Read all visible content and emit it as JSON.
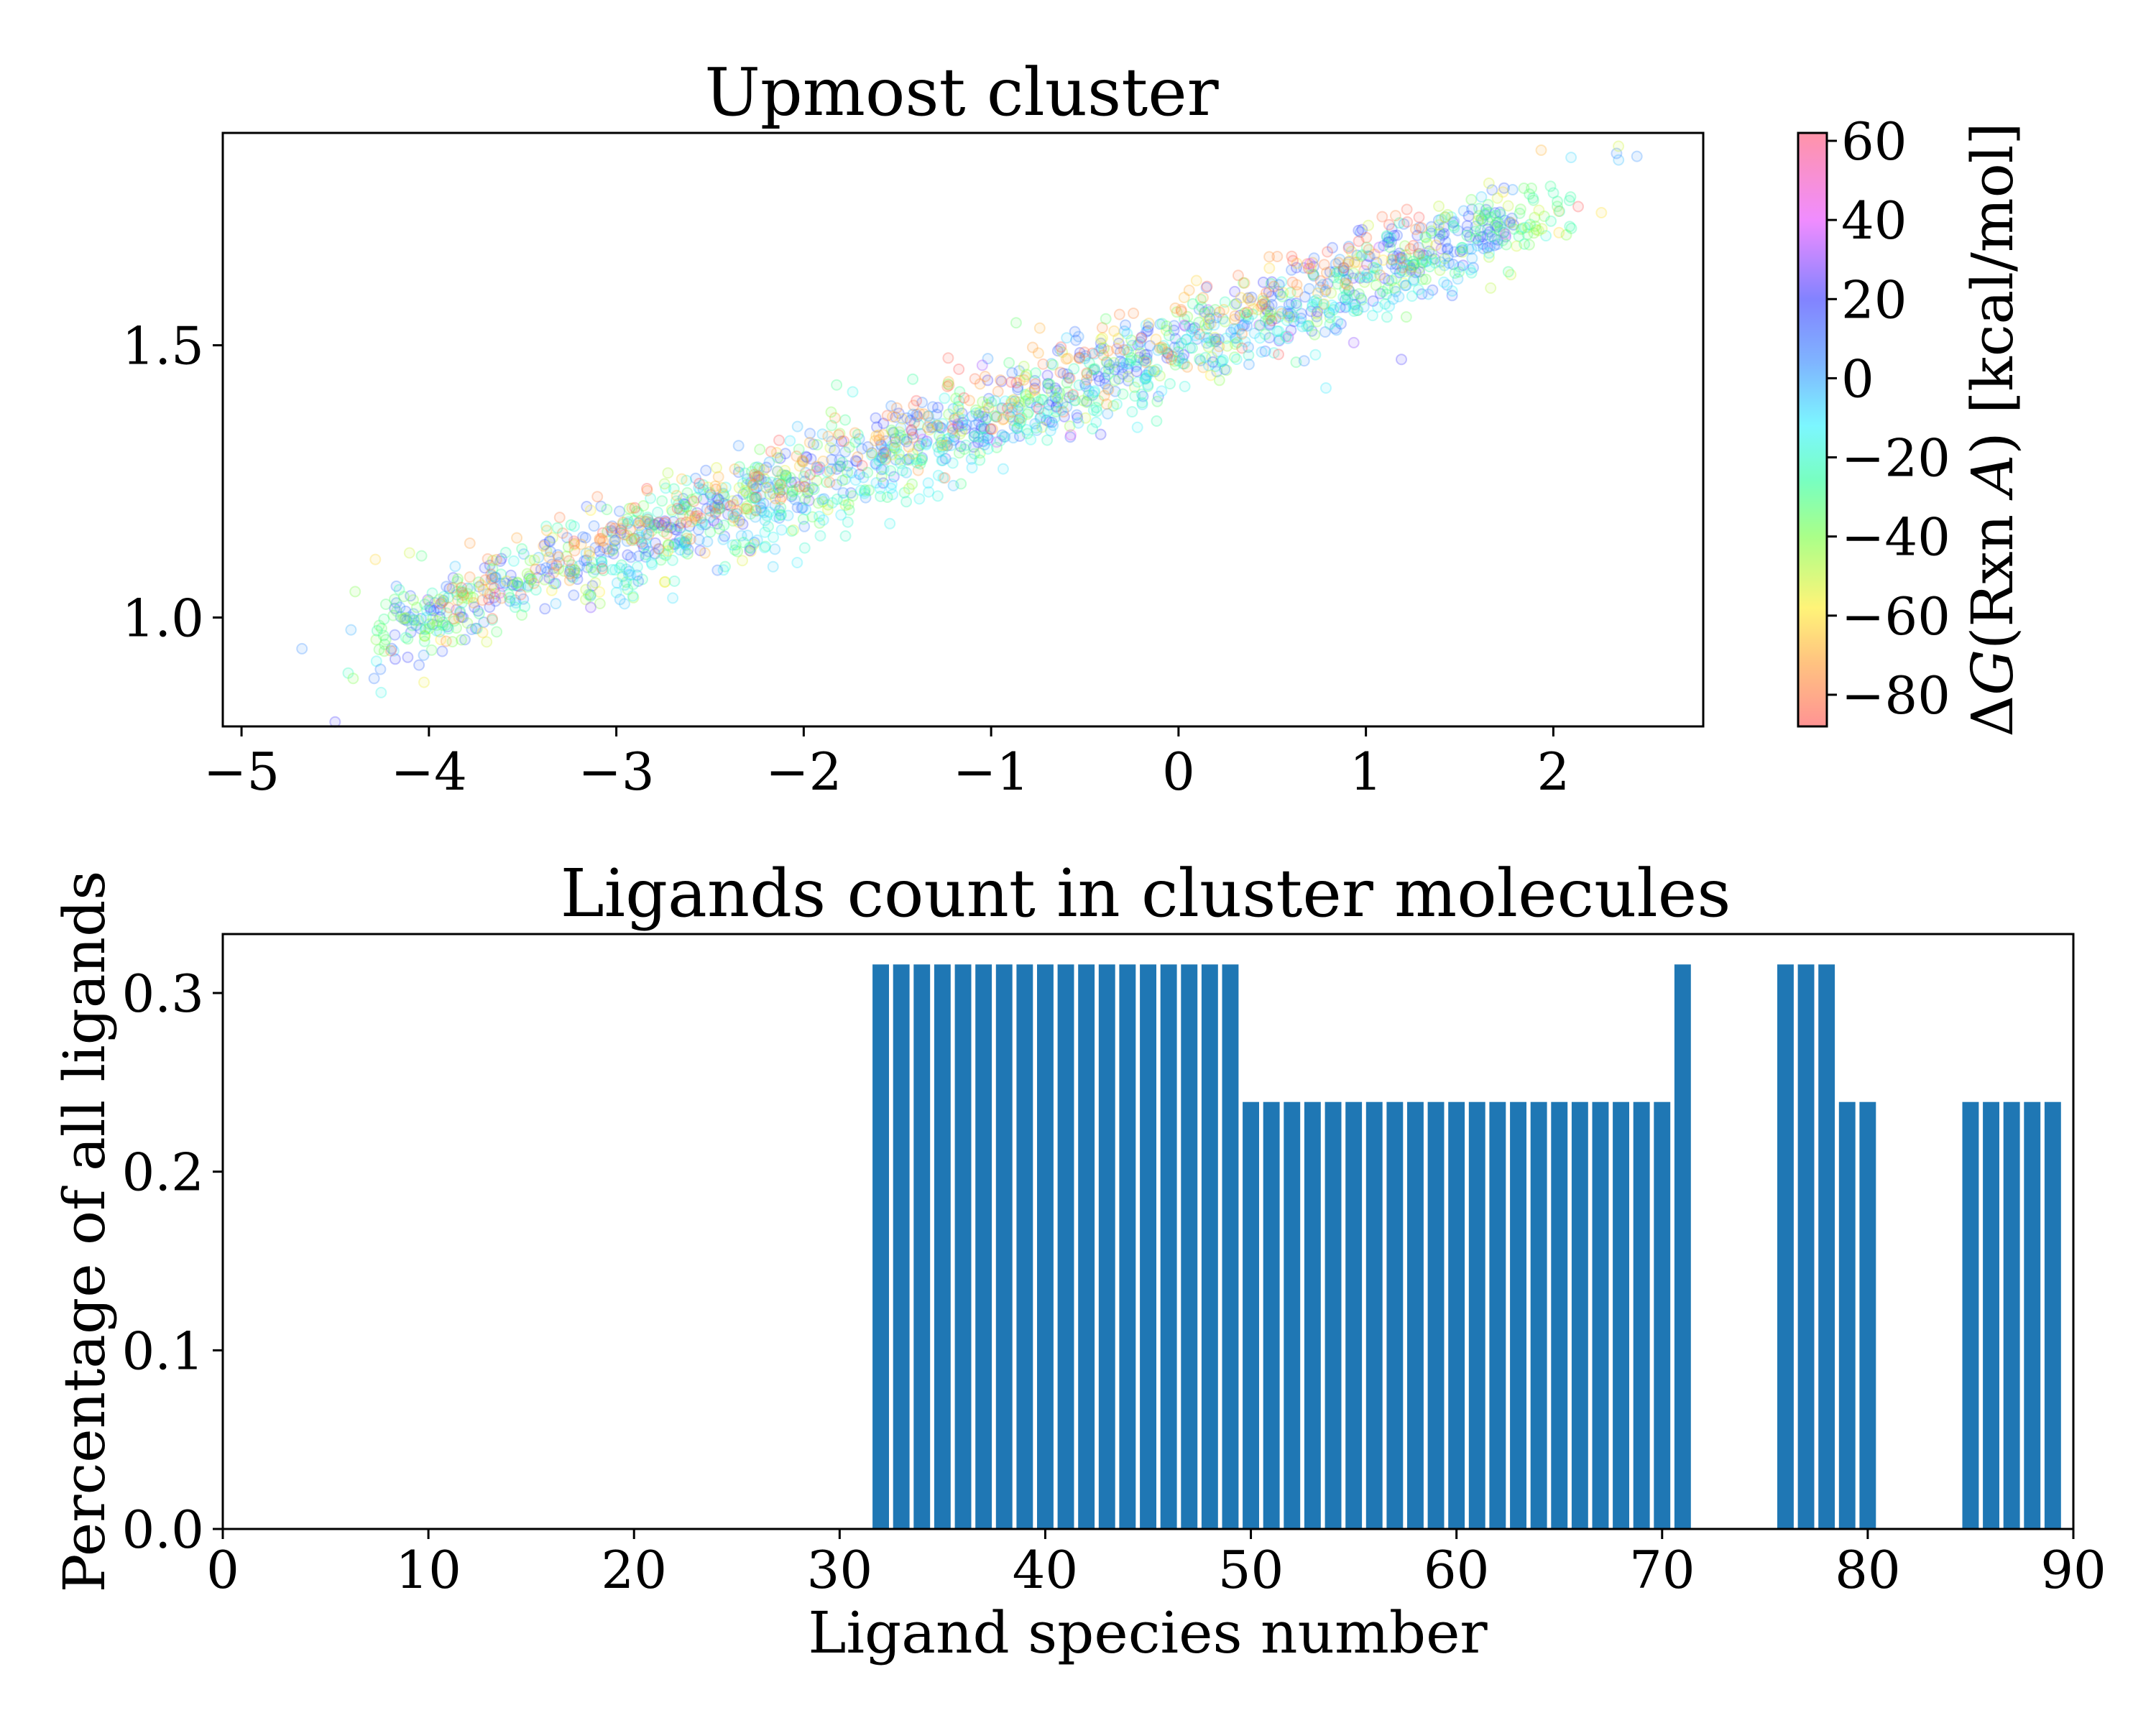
{
  "chart_data": [
    {
      "type": "scatter",
      "title": "Upmost cluster",
      "xlabel": "",
      "ylabel": "",
      "xlim": [
        -5.1,
        2.8
      ],
      "ylim": [
        0.8,
        1.89
      ],
      "xticks": [
        -5,
        -4,
        -3,
        -2,
        -1,
        0,
        1,
        2
      ],
      "xtick_labels": [
        "−5",
        "−4",
        "−3",
        "−2",
        "−1",
        "0",
        "1",
        "2"
      ],
      "yticks": [
        1.0,
        1.5
      ],
      "ytick_labels": [
        "1.0",
        "1.5"
      ],
      "colorbar": {
        "label": "ΔG(Rxn A) [kcal/mol]",
        "label_parts": [
          "Δ",
          "G",
          "(Rxn ",
          "A",
          ") [kcal/mol]"
        ],
        "range": [
          -88,
          62
        ],
        "ticks": [
          60,
          40,
          20,
          0,
          -20,
          -40,
          -60,
          -80
        ],
        "tick_labels": [
          "60",
          "40",
          "20",
          "0",
          "−20",
          "−40",
          "−60",
          "−80"
        ],
        "stops": [
          {
            "v": -88,
            "color": "#ff5a5a"
          },
          {
            "v": -72,
            "color": "#ffa23c"
          },
          {
            "v": -58,
            "color": "#ffee30"
          },
          {
            "v": -40,
            "color": "#7cff4a"
          },
          {
            "v": -26,
            "color": "#30ff9e"
          },
          {
            "v": -12,
            "color": "#36f2ff"
          },
          {
            "v": 4,
            "color": "#3a8cff"
          },
          {
            "v": 20,
            "color": "#4040ff"
          },
          {
            "v": 40,
            "color": "#e84fff"
          },
          {
            "v": 62,
            "color": "#ff5a7a"
          }
        ]
      },
      "series": [
        {
          "bands": [
            {
              "x0": -4.2,
              "x1": 1.8,
              "y_at_x0": 0.98,
              "slope": 0.125,
              "spread": 0.035,
              "value": 10,
              "value_sd": 8,
              "count": 700
            },
            {
              "x0": -4.3,
              "x1": 2.1,
              "y_at_x0": 0.96,
              "slope": 0.125,
              "spread": 0.04,
              "value": -35,
              "value_sd": 12,
              "count": 650
            },
            {
              "x0": -4.0,
              "x1": 1.3,
              "y_at_x0": 1.02,
              "slope": 0.13,
              "spread": 0.035,
              "value": -75,
              "value_sd": 8,
              "count": 300
            },
            {
              "x0": -3.0,
              "x1": 1.6,
              "y_at_x0": 1.06,
              "slope": 0.13,
              "spread": 0.03,
              "value": -15,
              "value_sd": 8,
              "count": 250
            },
            {
              "x0": -4.7,
              "x1": 2.5,
              "y_at_x0": 0.92,
              "slope": 0.125,
              "spread": 0.06,
              "value": -20,
              "value_sd": 35,
              "count": 150
            }
          ]
        }
      ]
    },
    {
      "type": "bar",
      "title": "Ligands count in cluster molecules",
      "xlabel": "Ligand species number",
      "ylabel": "Percentage of all ligands",
      "xlim": [
        0,
        90
      ],
      "ylim": [
        0,
        0.333
      ],
      "xticks": [
        0,
        10,
        20,
        30,
        40,
        50,
        60,
        70,
        80,
        90
      ],
      "yticks": [
        0.0,
        0.1,
        0.2,
        0.3
      ],
      "ytick_labels": [
        "0.0",
        "0.1",
        "0.2",
        "0.3"
      ],
      "color": "#1f77b4",
      "bars": [
        {
          "x": 32,
          "value": 0.316
        },
        {
          "x": 33,
          "value": 0.316
        },
        {
          "x": 34,
          "value": 0.316
        },
        {
          "x": 35,
          "value": 0.316
        },
        {
          "x": 36,
          "value": 0.316
        },
        {
          "x": 37,
          "value": 0.316
        },
        {
          "x": 38,
          "value": 0.316
        },
        {
          "x": 39,
          "value": 0.316
        },
        {
          "x": 40,
          "value": 0.316
        },
        {
          "x": 41,
          "value": 0.316
        },
        {
          "x": 42,
          "value": 0.316
        },
        {
          "x": 43,
          "value": 0.316
        },
        {
          "x": 44,
          "value": 0.316
        },
        {
          "x": 45,
          "value": 0.316
        },
        {
          "x": 46,
          "value": 0.316
        },
        {
          "x": 47,
          "value": 0.316
        },
        {
          "x": 48,
          "value": 0.316
        },
        {
          "x": 49,
          "value": 0.316
        },
        {
          "x": 50,
          "value": 0.239
        },
        {
          "x": 51,
          "value": 0.239
        },
        {
          "x": 52,
          "value": 0.239
        },
        {
          "x": 53,
          "value": 0.239
        },
        {
          "x": 54,
          "value": 0.239
        },
        {
          "x": 55,
          "value": 0.239
        },
        {
          "x": 56,
          "value": 0.239
        },
        {
          "x": 57,
          "value": 0.239
        },
        {
          "x": 58,
          "value": 0.239
        },
        {
          "x": 59,
          "value": 0.239
        },
        {
          "x": 60,
          "value": 0.239
        },
        {
          "x": 61,
          "value": 0.239
        },
        {
          "x": 62,
          "value": 0.239
        },
        {
          "x": 63,
          "value": 0.239
        },
        {
          "x": 64,
          "value": 0.239
        },
        {
          "x": 65,
          "value": 0.239
        },
        {
          "x": 66,
          "value": 0.239
        },
        {
          "x": 67,
          "value": 0.239
        },
        {
          "x": 68,
          "value": 0.239
        },
        {
          "x": 69,
          "value": 0.239
        },
        {
          "x": 70,
          "value": 0.239
        },
        {
          "x": 71,
          "value": 0.316
        },
        {
          "x": 76,
          "value": 0.316
        },
        {
          "x": 77,
          "value": 0.316
        },
        {
          "x": 78,
          "value": 0.316
        },
        {
          "x": 79,
          "value": 0.239
        },
        {
          "x": 80,
          "value": 0.239
        },
        {
          "x": 85,
          "value": 0.239
        },
        {
          "x": 86,
          "value": 0.239
        },
        {
          "x": 87,
          "value": 0.239
        },
        {
          "x": 88,
          "value": 0.239
        },
        {
          "x": 89,
          "value": 0.239
        }
      ]
    }
  ]
}
